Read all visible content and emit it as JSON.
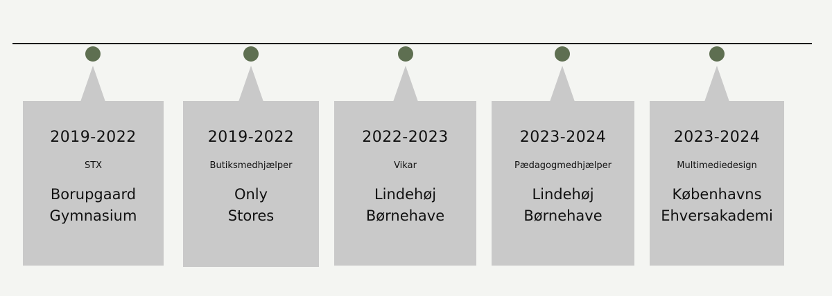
{
  "colors": {
    "background": "#f4f5f2",
    "line": "#1c1c1c",
    "dot": "#5e6f51",
    "card": "#c9c9c9",
    "text": "#111111"
  },
  "entries": [
    {
      "years": "2019-2022",
      "role": "STX",
      "place_line1": "Borupgaard",
      "place_line2": "Gymnasium"
    },
    {
      "years": "2019-2022",
      "role": "Butiksmedhjælper",
      "place_line1": "Only",
      "place_line2": "Stores"
    },
    {
      "years": "2022-2023",
      "role": "Vikar",
      "place_line1": "Lindehøj",
      "place_line2": "Børnehave"
    },
    {
      "years": "2023-2024",
      "role": "Pædagogmedhjælper",
      "place_line1": "Lindehøj",
      "place_line2": "Børnehave"
    },
    {
      "years": "2023-2024",
      "role": "Multimediedesign",
      "place_line1": "Københavns",
      "place_line2": "Ehversakademi"
    }
  ]
}
